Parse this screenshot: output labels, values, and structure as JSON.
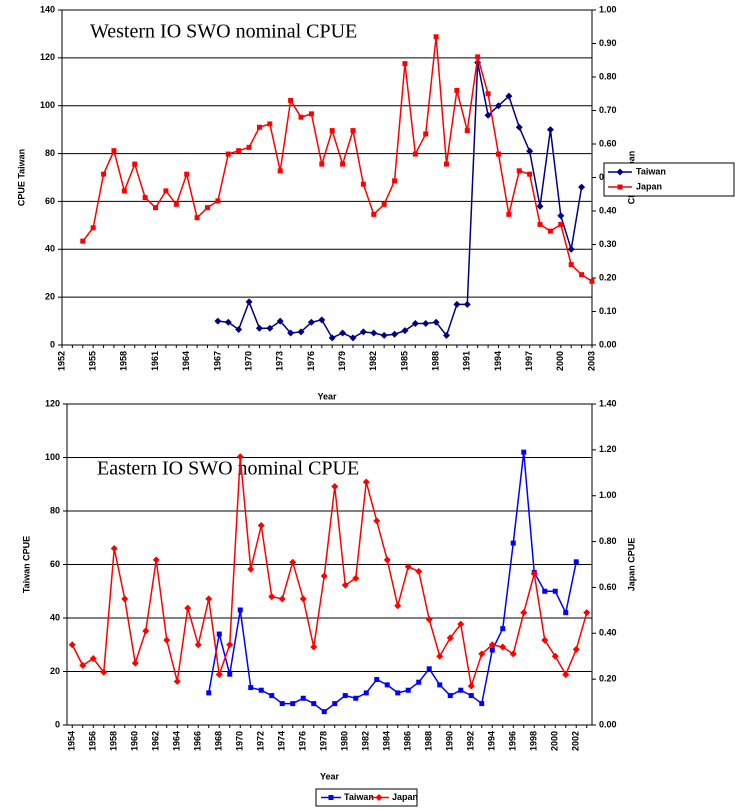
{
  "chart_data": [
    {
      "type": "line",
      "title": "Western IO SWO nominal CPUE",
      "x_label": "Year",
      "y_label": "CPUE Taiwan",
      "y2_label": "CPUE Japan",
      "categories": [
        "1952",
        null,
        null,
        "1955",
        null,
        null,
        "1958",
        null,
        null,
        "1961",
        null,
        null,
        "1964",
        null,
        null,
        "1967",
        null,
        null,
        "1970",
        null,
        null,
        "1973",
        null,
        null,
        "1976",
        null,
        null,
        "1979",
        null,
        null,
        "1982",
        null,
        null,
        "1985",
        null,
        null,
        "1988",
        null,
        null,
        "1991",
        null,
        null,
        "1994",
        null,
        null,
        "1997",
        null,
        null,
        "2000",
        null,
        null,
        "2003"
      ],
      "series": [
        {
          "name": "Taiwan",
          "color": "#000080",
          "marker": "diamond",
          "values": [
            null,
            null,
            null,
            null,
            null,
            null,
            null,
            null,
            null,
            null,
            null,
            null,
            null,
            null,
            null,
            10,
            9.5,
            6.5,
            18,
            7,
            7,
            10,
            5,
            5.5,
            9.5,
            10.5,
            3,
            5,
            3,
            5.5,
            5,
            4,
            4.5,
            6,
            9,
            9,
            9.5,
            4,
            17,
            17,
            118,
            96,
            100,
            104,
            91,
            81,
            58,
            90,
            54,
            40,
            66,
            null
          ]
        },
        {
          "name": "Japan",
          "color": "#ff0000",
          "marker": "square",
          "axis": "y2",
          "values": [
            null,
            null,
            0.31,
            0.35,
            0.51,
            0.58,
            0.46,
            0.54,
            0.44,
            0.41,
            0.46,
            0.42,
            0.51,
            0.38,
            0.41,
            0.43,
            0.57,
            0.58,
            0.59,
            0.65,
            0.66,
            0.52,
            0.73,
            0.68,
            0.69,
            0.54,
            0.64,
            0.54,
            0.64,
            0.48,
            0.39,
            0.42,
            0.49,
            0.84,
            0.57,
            0.63,
            0.92,
            0.54,
            0.76,
            0.64,
            0.86,
            0.75,
            0.57,
            0.39,
            0.52,
            0.51,
            0.36,
            0.34,
            0.36,
            0.24,
            0.21,
            0.19
          ]
        }
      ],
      "ylim": [
        0,
        140
      ],
      "yticks": [
        0,
        20,
        40,
        60,
        80,
        100,
        120,
        140
      ],
      "y2lim": [
        0,
        1.0
      ],
      "y2ticks": [
        {
          "value": 0,
          "label": "0.00"
        },
        {
          "value": 0.1,
          "label": "0.10"
        },
        {
          "value": 0.2,
          "label": "0.20"
        },
        {
          "value": 0.3,
          "label": "0.30"
        },
        {
          "value": 0.4,
          "label": "0.40"
        },
        {
          "value": 0.5,
          "label": "0.50"
        },
        {
          "value": 0.6,
          "label": "0.60"
        },
        {
          "value": 0.7,
          "label": "0.70"
        },
        {
          "value": 0.8,
          "label": "0.80"
        },
        {
          "value": 0.9,
          "label": "0.90"
        },
        {
          "value": 1.0,
          "label": "1.00"
        }
      ],
      "grid": true,
      "legend": "right"
    },
    {
      "type": "line",
      "title": "Eastern IO SWO nominal CPUE",
      "x_label": "Year",
      "y_label": "Taiwan CPUE",
      "y2_label": "Japan CPUE",
      "categories": [
        "1954",
        null,
        "1956",
        null,
        "1958",
        null,
        "1960",
        null,
        "1962",
        null,
        "1964",
        null,
        "1966",
        null,
        "1968",
        null,
        "1970",
        null,
        "1972",
        null,
        "1974",
        null,
        "1976",
        null,
        "1978",
        null,
        "1980",
        null,
        "1982",
        null,
        "1984",
        null,
        "1986",
        null,
        "1988",
        null,
        "1990",
        null,
        "1992",
        null,
        "1994",
        null,
        "1996",
        null,
        "1998",
        null,
        "2000",
        null,
        "2002",
        null
      ],
      "series": [
        {
          "name": "Taiwan",
          "color": "#0000ff",
          "marker": "square",
          "values": [
            null,
            null,
            null,
            null,
            null,
            null,
            null,
            null,
            null,
            null,
            null,
            null,
            null,
            12,
            34,
            19,
            43,
            14,
            13,
            11,
            8,
            8,
            10,
            8,
            5,
            8,
            11,
            10,
            12,
            17,
            15,
            12,
            13,
            16,
            21,
            15,
            11,
            13,
            11,
            8,
            28,
            36,
            68,
            102,
            57,
            50,
            50,
            42,
            61,
            null
          ]
        },
        {
          "name": "Japan",
          "color": "#ff0000",
          "marker": "diamond",
          "axis": "y2",
          "values": [
            0.35,
            0.26,
            0.29,
            0.23,
            0.77,
            0.55,
            0.27,
            0.41,
            0.72,
            0.37,
            0.19,
            0.51,
            0.35,
            0.55,
            0.22,
            0.35,
            1.17,
            0.68,
            0.87,
            0.56,
            0.55,
            0.71,
            0.55,
            0.34,
            0.65,
            1.04,
            0.61,
            0.64,
            1.06,
            0.89,
            0.72,
            0.52,
            0.69,
            0.67,
            0.46,
            0.3,
            0.38,
            0.44,
            0.17,
            0.31,
            0.35,
            0.34,
            0.31,
            0.49,
            0.66,
            0.37,
            0.3,
            0.22,
            0.33,
            0.49
          ]
        }
      ],
      "ylim": [
        0,
        120
      ],
      "yticks": [
        0,
        20,
        40,
        60,
        80,
        100,
        120
      ],
      "y2lim": [
        0,
        1.4
      ],
      "y2ticks": [
        {
          "value": 0,
          "label": "0.00"
        },
        {
          "value": 0.2,
          "label": "0.20"
        },
        {
          "value": 0.4,
          "label": "0.40"
        },
        {
          "value": 0.6,
          "label": "0.60"
        },
        {
          "value": 0.8,
          "label": "0.80"
        },
        {
          "value": 1.0,
          "label": "1.00"
        },
        {
          "value": 1.2,
          "label": "1.20"
        },
        {
          "value": 1.4,
          "label": "1.40"
        }
      ],
      "grid": true,
      "legend": "bottom"
    }
  ]
}
